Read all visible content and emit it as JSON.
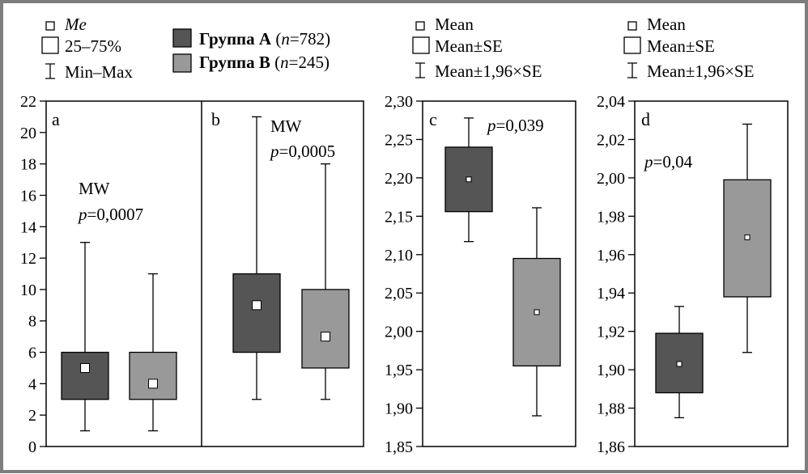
{
  "colors": {
    "group_a": "#555555",
    "group_b": "#999999",
    "frame": "#7d7d7d"
  },
  "legend_left": {
    "marker_label": "Me",
    "box_label": "25–75%",
    "whisker_label": "Min–Max"
  },
  "legend_groups": {
    "a_name": "Группа А",
    "a_n_var": "n",
    "a_n_val": "=782",
    "b_name": "Группа В",
    "b_n_var": "n",
    "b_n_val": "=245"
  },
  "legend_right_c": {
    "marker_label": "Mean",
    "box_label": "Mean±SE",
    "whisker_label": "Mean±1,96×SE"
  },
  "legend_right_d": {
    "marker_label": "Mean",
    "box_label": "Mean±SE",
    "whisker_label": "Mean±1,96×SE"
  },
  "chart_data": [
    {
      "type": "box",
      "panel_label": "a",
      "ylim": [
        0,
        22
      ],
      "yticks": [
        0,
        2,
        4,
        6,
        8,
        10,
        12,
        14,
        16,
        18,
        20,
        22
      ],
      "annotation_test": "MW",
      "annotation_p_var": "p",
      "annotation_p_val": "=0,0007",
      "series": [
        {
          "name": "Группа А",
          "min": 1,
          "q1": 3,
          "median": 5,
          "q3": 6,
          "max": 13
        },
        {
          "name": "Группа В",
          "min": 1,
          "q1": 3,
          "median": 4,
          "q3": 6,
          "max": 11
        }
      ]
    },
    {
      "type": "box",
      "panel_label": "b",
      "ylim": [
        0,
        22
      ],
      "yticks": [],
      "annotation_test": "MW",
      "annotation_p_var": "p",
      "annotation_p_val": "=0,0005",
      "series": [
        {
          "name": "Группа А",
          "min": 3,
          "q1": 6,
          "median": 9,
          "q3": 11,
          "max": 21
        },
        {
          "name": "Группа В",
          "min": 3,
          "q1": 5,
          "median": 7,
          "q3": 10,
          "max": 18
        }
      ]
    },
    {
      "type": "box",
      "panel_label": "c",
      "ylim": [
        1.85,
        2.3
      ],
      "yticks": [
        "1,85",
        "1,90",
        "1,95",
        "2,00",
        "2,05",
        "2,10",
        "2,15",
        "2,20",
        "2,25",
        "2,30"
      ],
      "annotation_p_var": "p",
      "annotation_p_val": "=0,039",
      "series": [
        {
          "name": "Группа А",
          "min": 2.117,
          "q1": 2.156,
          "median": 2.198,
          "q3": 2.24,
          "max": 2.278
        },
        {
          "name": "Группа В",
          "min": 1.89,
          "q1": 1.955,
          "median": 2.025,
          "q3": 2.095,
          "max": 2.161
        }
      ]
    },
    {
      "type": "box",
      "panel_label": "d",
      "ylim": [
        1.86,
        2.04
      ],
      "yticks": [
        "1,86",
        "1,88",
        "1,90",
        "1,92",
        "1,94",
        "1,96",
        "1,98",
        "2,00",
        "2,02",
        "2,04"
      ],
      "annotation_p_var": "p",
      "annotation_p_val": "=0,04",
      "series": [
        {
          "name": "Группа А",
          "min": 1.875,
          "q1": 1.888,
          "median": 1.903,
          "q3": 1.919,
          "max": 1.933
        },
        {
          "name": "Группа В",
          "min": 1.909,
          "q1": 1.938,
          "median": 1.969,
          "q3": 1.999,
          "max": 2.028
        }
      ]
    }
  ]
}
